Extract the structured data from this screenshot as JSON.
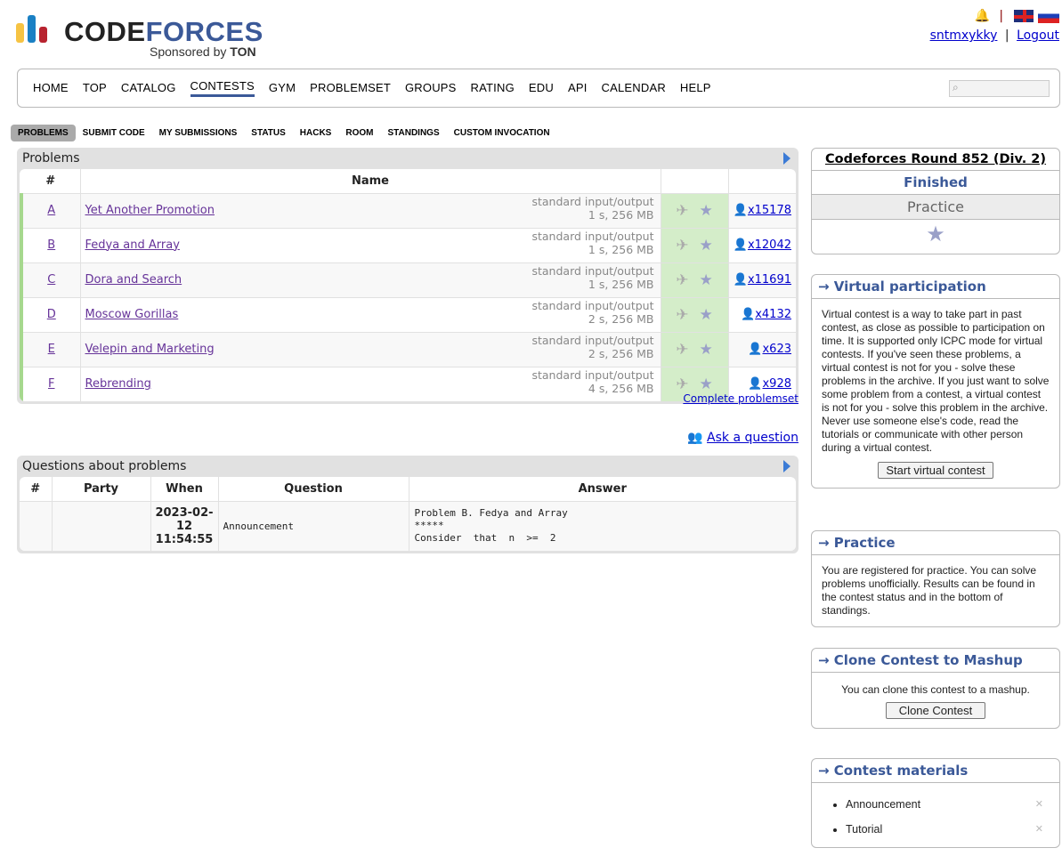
{
  "header": {
    "brand_a": "CODE",
    "brand_b": "FORCES",
    "sponsor": "Sponsored by ",
    "sponsor_b": "TON",
    "user": "sntmxykky",
    "logout": "Logout",
    "sep": "|"
  },
  "menu": [
    "HOME",
    "TOP",
    "CATALOG",
    "CONTESTS",
    "GYM",
    "PROBLEMSET",
    "GROUPS",
    "RATING",
    "EDU",
    "API",
    "CALENDAR",
    "HELP"
  ],
  "menu_current": "CONTESTS",
  "tabs": [
    "PROBLEMS",
    "SUBMIT CODE",
    "MY SUBMISSIONS",
    "STATUS",
    "HACKS",
    "ROOM",
    "STANDINGS",
    "CUSTOM INVOCATION"
  ],
  "problems": {
    "caption": "Problems",
    "headers": [
      "#",
      "Name"
    ],
    "rows": [
      {
        "id": "A",
        "name": "Yet Another Promotion",
        "io": "standard input/output",
        "limits": "1 s, 256 MB",
        "solved": "x15178"
      },
      {
        "id": "B",
        "name": "Fedya and Array",
        "io": "standard input/output",
        "limits": "1 s, 256 MB",
        "solved": "x12042"
      },
      {
        "id": "C",
        "name": "Dora and Search",
        "io": "standard input/output",
        "limits": "1 s, 256 MB",
        "solved": "x11691"
      },
      {
        "id": "D",
        "name": "Moscow Gorillas",
        "io": "standard input/output",
        "limits": "2 s, 256 MB",
        "solved": "x4132"
      },
      {
        "id": "E",
        "name": "Velepin and Marketing",
        "io": "standard input/output",
        "limits": "2 s, 256 MB",
        "solved": "x623"
      },
      {
        "id": "F",
        "name": "Rebrending",
        "io": "standard input/output",
        "limits": "4 s, 256 MB",
        "solved": "x928"
      }
    ],
    "complete": "Complete problemset"
  },
  "ask": "Ask a question",
  "questions": {
    "caption": "Questions about problems",
    "headers": [
      "#",
      "Party",
      "When",
      "Question",
      "Answer"
    ],
    "row": {
      "when": [
        "2023-02-",
        "12",
        "11:54:55"
      ],
      "question": "Announcement",
      "answer": [
        "Problem B. Fedya and Array",
        "*****",
        "Consider  that  n  >=  2"
      ]
    }
  },
  "sidebar": {
    "contest": {
      "title": "Codeforces Round 852 (Div. 2)",
      "status": "Finished",
      "mode": "Practice"
    },
    "virtual": {
      "title": "→ Virtual participation",
      "text": "Virtual contest is a way to take part in past contest, as close as possible to participation on time. It is supported only ICPC mode for virtual contests. If you've seen these problems, a virtual contest is not for you - solve these problems in the archive. If you just want to solve some problem from a contest, a virtual contest is not for you - solve this problem in the archive. Never use someone else's code, read the tutorials or communicate with other person during a virtual contest.",
      "button": "Start virtual contest"
    },
    "practice": {
      "title": "→ Practice",
      "text": "You are registered for practice. You can solve problems unofficially. Results can be found in the contest status and in the bottom of standings."
    },
    "clone": {
      "title": "→ Clone Contest to Mashup",
      "text": "You can clone this contest to a mashup.",
      "button": "Clone Contest"
    },
    "materials": {
      "title": "→ Contest materials",
      "items": [
        "Announcement",
        "Tutorial"
      ]
    }
  },
  "colors": {
    "accent": "#3b5998",
    "green": "#d4edc9",
    "link": "#0000cc"
  }
}
